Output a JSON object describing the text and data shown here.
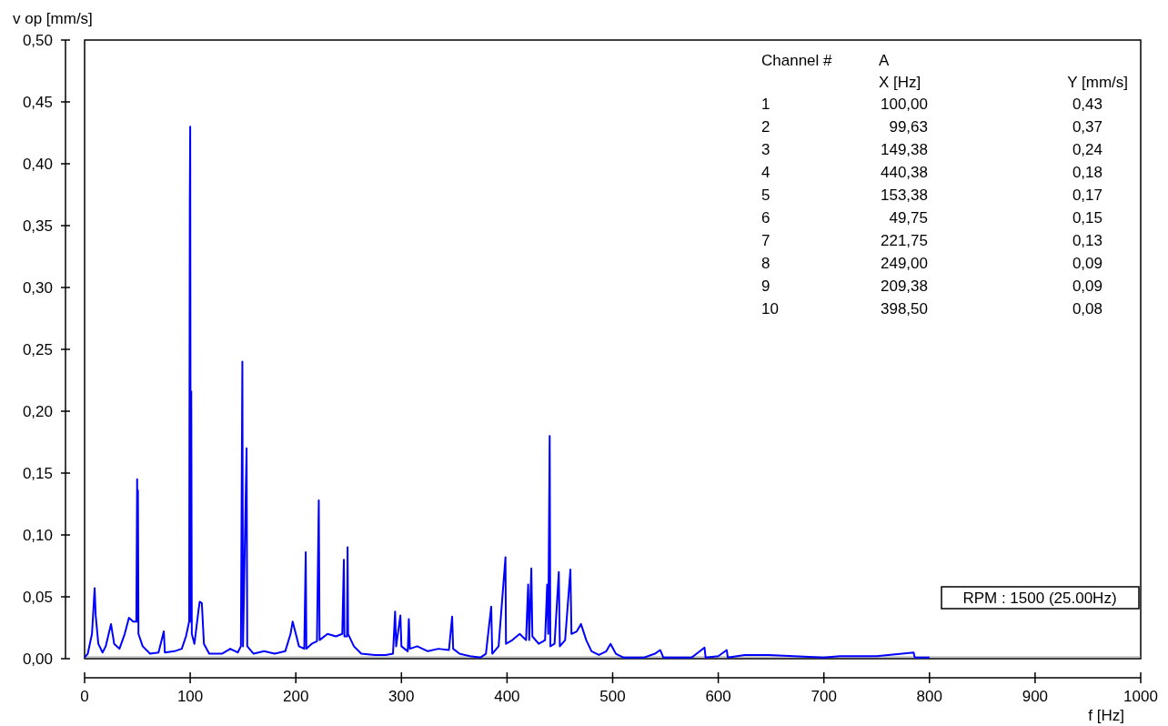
{
  "chart_data": {
    "type": "line",
    "xlabel": "f [Hz]",
    "ylabel": "v op [mm/s]",
    "xlim": [
      0,
      1000
    ],
    "xticks": [
      0,
      100,
      200,
      300,
      400,
      500,
      600,
      700,
      800,
      900,
      1000
    ],
    "ylim": [
      0,
      0.5
    ],
    "yticks": [
      {
        "value": 0,
        "label": "0,00"
      },
      {
        "value": 0.05,
        "label": "0,05"
      },
      {
        "value": 0.1,
        "label": "0,10"
      },
      {
        "value": 0.15,
        "label": "0,15"
      },
      {
        "value": 0.2,
        "label": "0,20"
      },
      {
        "value": 0.25,
        "label": "0,25"
      },
      {
        "value": 0.3,
        "label": "0,30"
      },
      {
        "value": 0.35,
        "label": "0,35"
      },
      {
        "value": 0.4,
        "label": "0,40"
      },
      {
        "value": 0.45,
        "label": "0,45"
      },
      {
        "value": 0.5,
        "label": "0,50"
      }
    ],
    "grid": false,
    "marker": "none",
    "line_style": "solid",
    "series": [
      {
        "color": "#0000ff",
        "x": [
          0,
          3,
          7,
          9.5,
          10.5,
          13,
          17,
          20,
          25,
          28,
          33,
          38,
          42,
          46,
          49,
          49.75,
          50.2,
          50.5,
          51,
          55,
          62,
          70,
          75,
          76,
          85,
          92,
          96,
          99,
          99.63,
          100,
          100.5,
          101,
          101.5,
          104,
          108,
          109,
          111,
          113,
          118,
          130,
          138,
          145,
          148,
          149.38,
          150,
          153.38,
          154,
          160,
          170,
          180,
          190,
          195,
          197,
          200,
          203,
          208,
          209.38,
          210,
          215,
          220,
          221.75,
          222.5,
          230,
          238,
          244,
          245.5,
          246,
          248.5,
          249,
          249.5,
          255,
          262,
          275,
          285,
          292,
          294,
          295,
          299,
          300,
          306,
          307,
          308,
          315,
          325,
          335,
          345,
          348,
          349,
          355,
          365,
          375,
          380,
          385,
          386,
          392,
          398.5,
          399,
          405,
          412,
          418,
          420,
          421,
          423,
          424,
          430,
          436,
          438,
          439,
          440.38,
          441,
          445,
          449,
          450,
          455,
          460,
          461,
          466,
          470,
          475,
          480,
          487,
          494,
          498,
          503,
          510,
          530,
          540,
          545,
          548,
          575,
          587,
          588,
          600,
          608,
          609,
          625,
          648,
          700,
          715,
          750,
          785,
          786,
          800
        ],
        "values": [
          0.001,
          0.004,
          0.02,
          0.057,
          0.035,
          0.012,
          0.005,
          0.01,
          0.028,
          0.012,
          0.008,
          0.02,
          0.033,
          0.03,
          0.03,
          0.145,
          0.03,
          0.136,
          0.02,
          0.01,
          0.004,
          0.005,
          0.022,
          0.005,
          0.006,
          0.008,
          0.018,
          0.03,
          0.37,
          0.43,
          0.03,
          0.216,
          0.02,
          0.012,
          0.04,
          0.046,
          0.045,
          0.012,
          0.004,
          0.004,
          0.008,
          0.005,
          0.01,
          0.24,
          0.01,
          0.17,
          0.01,
          0.004,
          0.006,
          0.004,
          0.006,
          0.02,
          0.03,
          0.02,
          0.01,
          0.008,
          0.086,
          0.008,
          0.012,
          0.014,
          0.128,
          0.015,
          0.02,
          0.018,
          0.02,
          0.08,
          0.018,
          0.018,
          0.09,
          0.02,
          0.01,
          0.004,
          0.003,
          0.003,
          0.004,
          0.038,
          0.01,
          0.035,
          0.01,
          0.006,
          0.032,
          0.008,
          0.01,
          0.006,
          0.008,
          0.007,
          0.034,
          0.008,
          0.004,
          0.002,
          0.001,
          0.004,
          0.042,
          0.004,
          0.01,
          0.082,
          0.012,
          0.015,
          0.02,
          0.015,
          0.06,
          0.015,
          0.073,
          0.018,
          0.012,
          0.015,
          0.06,
          0.02,
          0.18,
          0.01,
          0.012,
          0.07,
          0.01,
          0.015,
          0.072,
          0.02,
          0.022,
          0.028,
          0.015,
          0.006,
          0.003,
          0.006,
          0.012,
          0.004,
          0.001,
          0.001,
          0.004,
          0.007,
          0.001,
          0.001,
          0.009,
          0.001,
          0.002,
          0.007,
          0.001,
          0.003,
          0.003,
          0.001,
          0.002,
          0.002,
          0.005,
          0.001,
          0.001
        ]
      }
    ],
    "annotations": [
      "Channel #",
      "A",
      "X [Hz]",
      "Y [mm/s]",
      "1",
      "100,00",
      "0,43",
      "2",
      "99,63",
      "0,37",
      "3",
      "149,38",
      "0,24",
      "4",
      "440,38",
      "0,18",
      "5",
      "153,38",
      "0,17",
      "6",
      "49,75",
      "0,15",
      "7",
      "221,75",
      "0,13",
      "8",
      "249,00",
      "0,09",
      "9",
      "209,38",
      "0,09",
      "10",
      "398,50",
      "0,08",
      "RPM : 1500 (25.00Hz)"
    ]
  }
}
